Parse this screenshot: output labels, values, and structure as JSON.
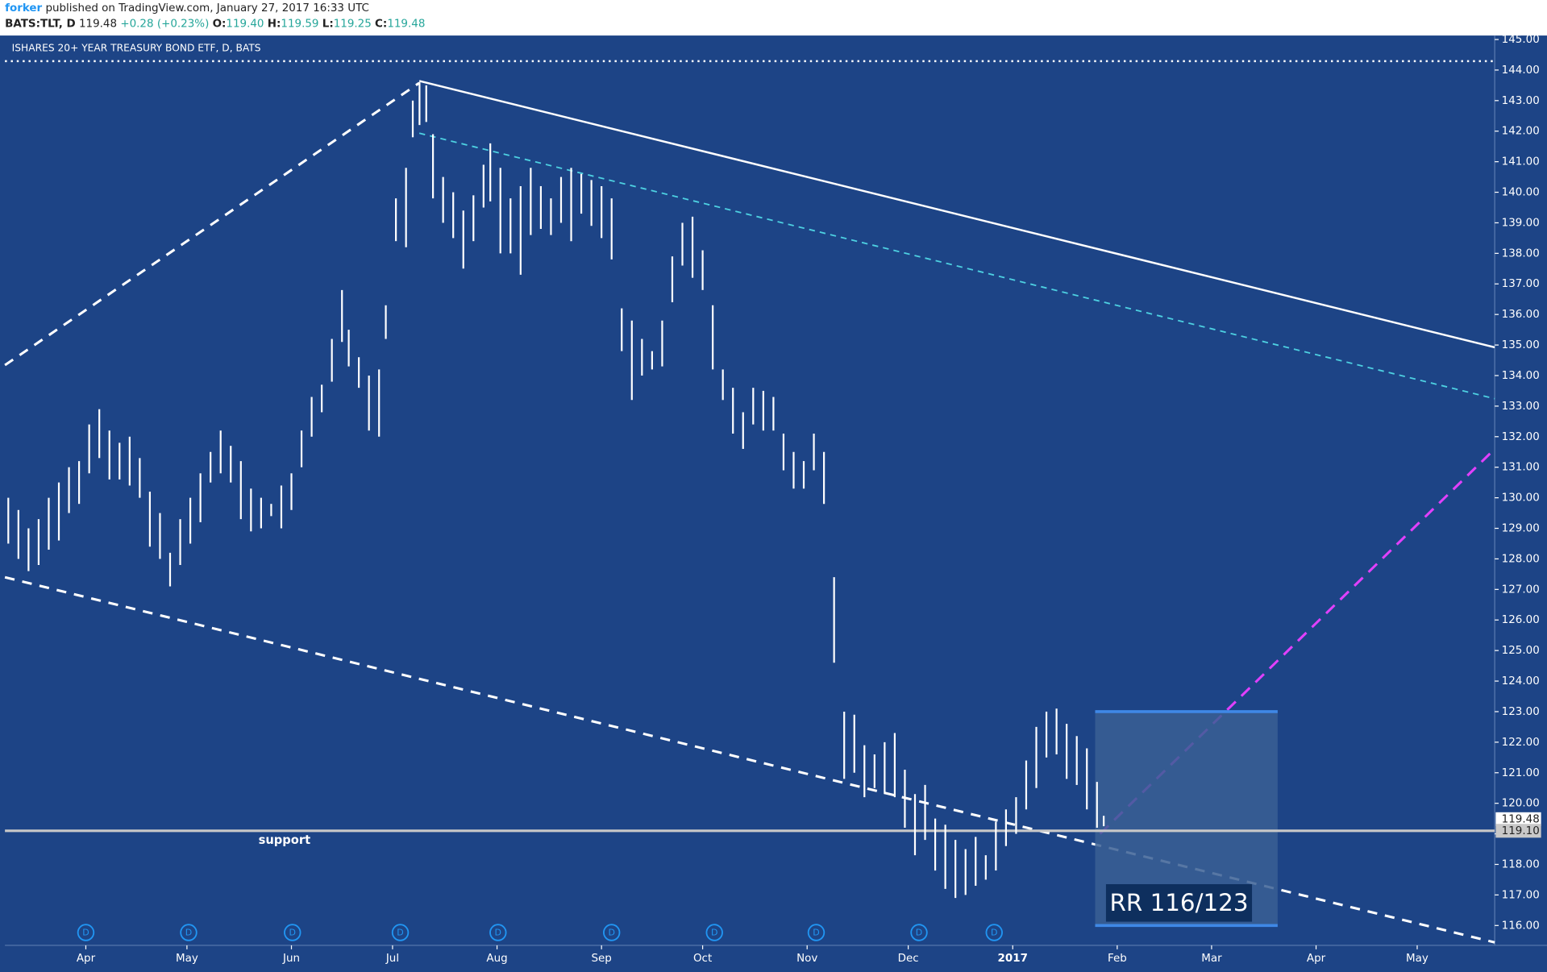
{
  "header": {
    "author": "forker",
    "published": "published on TradingView.com, January 27, 2017 16:33 UTC",
    "symbol": "BATS:TLT, D",
    "price": "119.48",
    "change": "+0.28 (+0.23%)",
    "open_label": "O:",
    "open": "119.40",
    "high_label": "H:",
    "high": "119.59",
    "low_label": "L:",
    "low": "119.25",
    "close_label": "C:",
    "close": "119.48"
  },
  "chart_data": {
    "type": "ohlc",
    "title": "ISHARES 20+ YEAR TREASURY BOND ETF, D, BATS",
    "annotation_support": "support",
    "annotation_rr": "RR 116/123",
    "rr_target": 123,
    "rr_stop": 116,
    "last_price": {
      "value": 119.48,
      "label": "119.48"
    },
    "support_price": {
      "value": 119.1,
      "label": "119.10"
    },
    "ylim": [
      115.35,
      145.13
    ],
    "yticks": [
      {
        "value": 116,
        "label": "116.00"
      },
      {
        "value": 117,
        "label": "117.00"
      },
      {
        "value": 118,
        "label": "118.00"
      },
      {
        "value": 119,
        "label": "119.00"
      },
      {
        "value": 120,
        "label": "120.00"
      },
      {
        "value": 121,
        "label": "121.00"
      },
      {
        "value": 122,
        "label": "122.00"
      },
      {
        "value": 123,
        "label": "123.00"
      },
      {
        "value": 124,
        "label": "124.00"
      },
      {
        "value": 125,
        "label": "125.00"
      },
      {
        "value": 126,
        "label": "126.00"
      },
      {
        "value": 127,
        "label": "127.00"
      },
      {
        "value": 128,
        "label": "128.00"
      },
      {
        "value": 129,
        "label": "129.00"
      },
      {
        "value": 130,
        "label": "130.00"
      },
      {
        "value": 131,
        "label": "131.00"
      },
      {
        "value": 132,
        "label": "132.00"
      },
      {
        "value": 133,
        "label": "133.00"
      },
      {
        "value": 134,
        "label": "134.00"
      },
      {
        "value": 135,
        "label": "135.00"
      },
      {
        "value": 136,
        "label": "136.00"
      },
      {
        "value": 137,
        "label": "137.00"
      },
      {
        "value": 138,
        "label": "138.00"
      },
      {
        "value": 139,
        "label": "139.00"
      },
      {
        "value": 140,
        "label": "140.00"
      },
      {
        "value": 141,
        "label": "141.00"
      },
      {
        "value": 142,
        "label": "142.00"
      },
      {
        "value": 143,
        "label": "143.00"
      },
      {
        "value": 144,
        "label": "144.00"
      },
      {
        "value": 145,
        "label": "145.00"
      }
    ],
    "xlim": [
      -24,
      418
    ],
    "xticks": [
      {
        "value": 0,
        "label": "Apr"
      },
      {
        "value": 30,
        "label": "May"
      },
      {
        "value": 61,
        "label": "Jun"
      },
      {
        "value": 91,
        "label": "Jul"
      },
      {
        "value": 122,
        "label": "Aug"
      },
      {
        "value": 153,
        "label": "Sep"
      },
      {
        "value": 183,
        "label": "Oct"
      },
      {
        "value": 214,
        "label": "Nov"
      },
      {
        "value": 244,
        "label": "Dec"
      },
      {
        "value": 275,
        "label": "2017"
      },
      {
        "value": 306,
        "label": "Feb"
      },
      {
        "value": 334,
        "label": "Mar"
      },
      {
        "value": 365,
        "label": "Apr"
      },
      {
        "value": 395,
        "label": "May"
      }
    ],
    "dividends": {
      "label": "D",
      "x": [
        0,
        30.5,
        61.3,
        93.3,
        122.3,
        156,
        186.5,
        216.7,
        247.2,
        269.5
      ]
    },
    "color": "#ffffff",
    "bars": {
      "x": [
        -23,
        -20,
        -17,
        -14,
        -11,
        -8,
        -5,
        -2,
        1,
        4,
        7,
        10,
        13,
        16,
        19,
        22,
        25,
        28,
        31,
        34,
        37,
        40,
        43,
        46,
        49,
        52,
        55,
        58,
        61,
        64,
        67,
        70,
        73,
        76,
        78,
        81,
        84,
        87,
        89,
        92,
        95,
        97,
        99,
        101,
        103,
        106,
        109,
        112,
        115,
        118,
        120,
        123,
        126,
        129,
        132,
        135,
        138,
        141,
        144,
        147,
        150,
        153,
        156,
        159,
        162,
        165,
        168,
        171,
        174,
        177,
        180,
        183,
        186,
        189,
        192,
        195,
        198,
        201,
        204,
        207,
        210,
        213,
        216,
        219,
        222,
        225,
        228,
        231,
        234,
        237,
        240,
        243,
        246,
        249,
        252,
        255,
        258,
        261,
        264,
        267,
        270,
        273,
        276,
        279,
        282,
        285,
        288,
        291,
        294,
        297,
        300,
        302
      ],
      "high": [
        130,
        129.6,
        129,
        129.3,
        130,
        130.5,
        131,
        131.2,
        132.4,
        132.9,
        132.2,
        131.8,
        132,
        131.3,
        130.2,
        129.5,
        128.2,
        129.3,
        130,
        130.8,
        131.5,
        132.2,
        131.7,
        131.2,
        130.3,
        130,
        129.8,
        130.4,
        130.8,
        132.2,
        133.3,
        133.7,
        135.2,
        136.8,
        135.5,
        134.6,
        134,
        134.2,
        136.3,
        139.8,
        140.8,
        143,
        143.6,
        143.5,
        141.9,
        140.5,
        140,
        139.4,
        139.9,
        140.9,
        141.6,
        140.8,
        139.8,
        140.2,
        140.8,
        140.2,
        139.8,
        140.5,
        140.8,
        140.6,
        140.4,
        140.2,
        139.8,
        136.2,
        135.8,
        135.2,
        134.8,
        135.8,
        137.9,
        139,
        139.2,
        138.1,
        136.3,
        134.2,
        133.6,
        132.8,
        133.6,
        133.5,
        133.3,
        132.1,
        131.5,
        131.2,
        132.1,
        131.5,
        127.4,
        123,
        122.9,
        121.9,
        121.6,
        122,
        122.3,
        121.1,
        120.3,
        120.6,
        119.5,
        119.3,
        118.8,
        118.5,
        118.9,
        118.3,
        119.4,
        119.8,
        120.2,
        121.4,
        122.5,
        123,
        123.1,
        122.6,
        122.2,
        121.8,
        120.7,
        119.59
      ],
      "low": [
        128.5,
        128,
        127.6,
        127.8,
        128.3,
        128.6,
        129.5,
        129.8,
        130.8,
        131.3,
        130.6,
        130.6,
        130.4,
        130,
        128.4,
        128,
        127.1,
        127.8,
        128.5,
        129.2,
        130.5,
        130.8,
        130.5,
        129.3,
        128.9,
        129,
        129.4,
        129,
        129.6,
        131,
        132,
        132.8,
        133.8,
        135.1,
        134.3,
        133.6,
        132.2,
        132,
        135.2,
        138.4,
        138.2,
        141.8,
        142.2,
        142.3,
        139.8,
        139,
        138.5,
        137.5,
        138.4,
        139.5,
        139.7,
        138,
        138,
        137.3,
        138.6,
        138.8,
        138.6,
        139,
        138.4,
        139.3,
        138.9,
        138.5,
        137.8,
        134.8,
        133.2,
        134,
        134.2,
        134.3,
        136.4,
        137.6,
        137.2,
        136.8,
        134.2,
        133.2,
        132.1,
        131.6,
        132.4,
        132.2,
        132.2,
        130.9,
        130.3,
        130.3,
        130.9,
        129.8,
        124.6,
        120.8,
        121,
        120.2,
        120.5,
        120.3,
        120.2,
        119.2,
        118.3,
        118.8,
        117.8,
        117.2,
        116.9,
        117,
        117.3,
        117.5,
        117.8,
        118.6,
        119,
        119.8,
        120.5,
        121.5,
        121.6,
        120.8,
        120.6,
        119.8,
        119.2,
        119.25
      ]
    }
  }
}
